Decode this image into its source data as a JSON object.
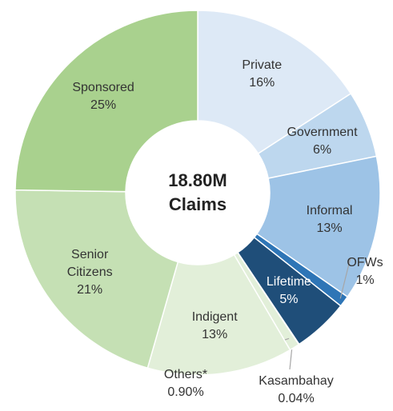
{
  "chart_data": {
    "type": "donut",
    "center_label": [
      "18.80M",
      "Claims"
    ],
    "categories": [
      "Private",
      "Government",
      "Informal",
      "OFWs",
      "Lifetime",
      "Kasambahay",
      "Others*",
      "Indigent",
      "Senior Citizens",
      "Sponsored"
    ],
    "values": [
      16,
      6,
      13,
      1,
      5,
      0.04,
      0.9,
      13,
      21,
      25
    ],
    "value_labels": [
      "16%",
      "6%",
      "13%",
      "1%",
      "5%",
      "0.04%",
      "0.90%",
      "13%",
      "21%",
      "25%"
    ],
    "colors": [
      "#dde9f6",
      "#bdd7ee",
      "#9dc3e6",
      "#2e75b6",
      "#1f4e79",
      "#1f4e79",
      "#e2efd9",
      "#e2efd9",
      "#c5e0b4",
      "#a9d18e"
    ]
  }
}
